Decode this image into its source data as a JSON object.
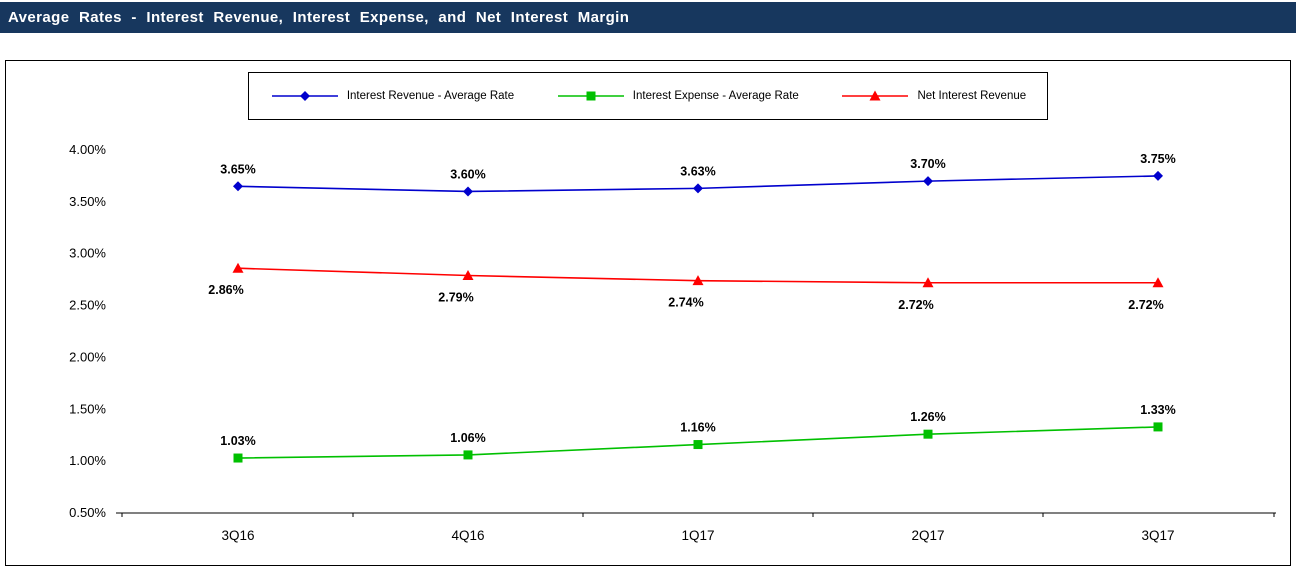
{
  "header": {
    "title": "Average Rates - Interest Revenue, Interest Expense, and Net Interest Margin",
    "bar_color": "#17375E"
  },
  "chart_data": {
    "type": "line",
    "title": "Average Rates - Interest Revenue, Interest Expense, and Net Interest Margin",
    "categories": [
      "3Q16",
      "4Q16",
      "1Q17",
      "2Q17",
      "3Q17"
    ],
    "series": [
      {
        "name": "Interest Revenue - Average Rate",
        "color": "#0000CD",
        "marker": "diamond",
        "label_position": "above",
        "values": [
          3.65,
          3.6,
          3.63,
          3.7,
          3.75
        ]
      },
      {
        "name": "Interest Expense - Average Rate",
        "color": "#00C000",
        "marker": "square",
        "label_position": "above",
        "values": [
          1.03,
          1.06,
          1.16,
          1.26,
          1.33
        ]
      },
      {
        "name": "Net Interest Revenue",
        "color": "#FF0000",
        "marker": "triangle",
        "label_position": "below",
        "values": [
          2.86,
          2.79,
          2.74,
          2.72,
          2.72
        ]
      }
    ],
    "xlabel": "",
    "ylabel": "",
    "ylim": [
      0.5,
      4.0
    ],
    "ytick_step": 0.5,
    "ytick_format": "0.00%",
    "data_label_format": "0.00%",
    "grid": false,
    "legend_position": "top-center"
  }
}
